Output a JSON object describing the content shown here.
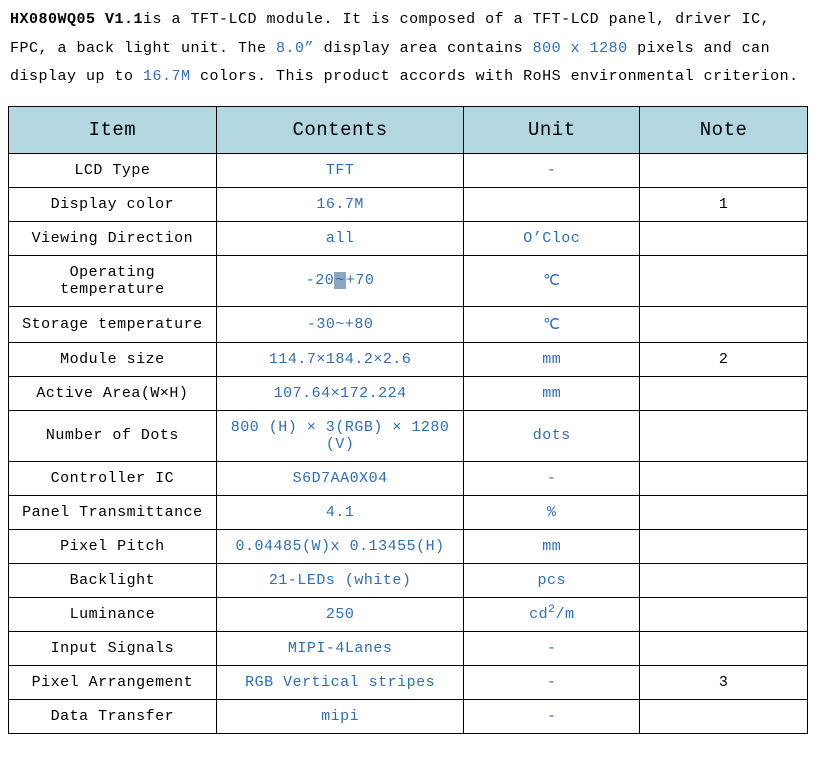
{
  "intro": {
    "model": "HX080WQ05 V1.1",
    "t1": "is a TFT-LCD module. It is composed of a TFT-LCD panel, driver IC, FPC, a back light unit. The ",
    "size": "8.0”",
    "t2": " display area contains ",
    "resolution": "800 x 1280",
    "t3": " pixels and can display up to ",
    "colors": "16.7M",
    "t4": " colors. This product accords with RoHS environmental criterion."
  },
  "table": {
    "headers": {
      "item": "Item",
      "contents": "Contents",
      "unit": "Unit",
      "note": "Note"
    },
    "header_bg": "#b3d7e0",
    "border_color": "#000000",
    "value_color": "#2d6fb6",
    "rows": [
      {
        "item": "LCD Type",
        "contents": "TFT",
        "unit": "-",
        "note": ""
      },
      {
        "item": "Display color",
        "contents": "16.7M",
        "unit": "",
        "note": "1"
      },
      {
        "item": "Viewing Direction",
        "contents": "all",
        "unit": "O’Cloc",
        "note": ""
      },
      {
        "item": "Operating temperature",
        "contents_html": "-20<span class=\"hl\">~</span>+70",
        "contents": "-20~+70",
        "unit": "℃",
        "note": ""
      },
      {
        "item": "Storage temperature",
        "contents": "-30~+80",
        "unit": "℃",
        "note": ""
      },
      {
        "item": "Module size",
        "contents": "114.7×184.2×2.6",
        "unit": "mm",
        "note": "2"
      },
      {
        "item": "Active Area(W×H)",
        "contents": "107.64×172.224",
        "unit": "mm",
        "note": ""
      },
      {
        "item": "Number of Dots",
        "contents": "800 (H) × 3(RGB) × 1280 (V)",
        "unit": "dots",
        "note": ""
      },
      {
        "item": "Controller IC",
        "contents": "S6D7AA0X04",
        "unit": "-",
        "note": ""
      },
      {
        "item": "Panel Transmittance",
        "contents": "4.1",
        "unit": "%",
        "note": ""
      },
      {
        "item": "Pixel Pitch",
        "contents": "0.04485(W)x 0.13455(H)",
        "unit": "mm",
        "note": ""
      },
      {
        "item": "Backlight",
        "contents": "21-LEDs (white)",
        "unit": "pcs",
        "note": ""
      },
      {
        "item": "Luminance",
        "contents": "250",
        "unit_html": "cd<sup>2</sup>/m",
        "unit": "cd2/m",
        "note": ""
      },
      {
        "item": "Input Signals",
        "contents": "MIPI-4Lanes",
        "unit": "-",
        "note": ""
      },
      {
        "item": "Pixel Arrangement",
        "contents": "RGB Vertical stripes",
        "unit": "-",
        "note": "3"
      },
      {
        "item": "Data Transfer",
        "contents": "mipi",
        "unit": "-",
        "note": ""
      }
    ]
  }
}
